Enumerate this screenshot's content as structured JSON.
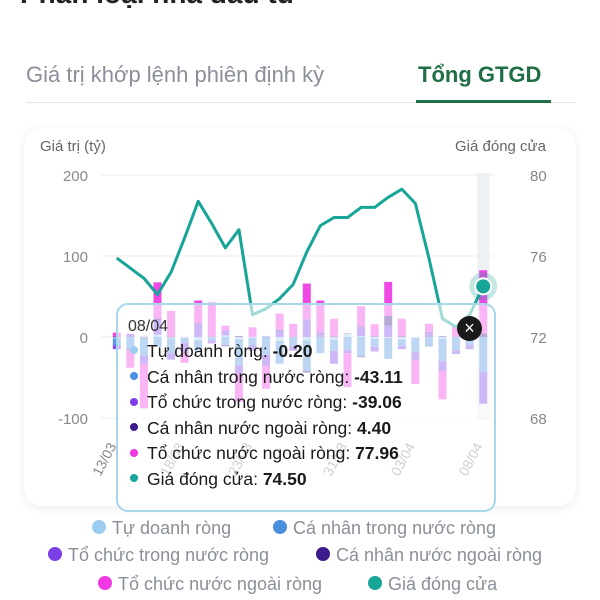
{
  "page": {
    "partial_title": "Phân loại nhà đầu tư"
  },
  "tabs": [
    {
      "label": "Giá trị khớp lệnh phiên định kỳ",
      "active": false
    },
    {
      "label": "Tổng GTGD",
      "active": true
    }
  ],
  "colors": {
    "tu_doanh": "#9ccdf0",
    "ca_nhan_trong_nuoc": "#4a8fe0",
    "to_chuc_trong_nuoc": "#7d3fe8",
    "ca_nhan_nuoc_ngoai": "#3d1a8c",
    "to_chuc_nuoc_ngoai": "#ef38e2",
    "gia_dong_cua": "#17a597",
    "accent": "#1f6e44"
  },
  "chart_data": {
    "type": "bar",
    "subtype": "stacked bar with line overlay",
    "left_axis_title": "Giá trị (tỷ)",
    "right_axis_title": "Giá đóng cửa",
    "y_ticks": [
      "200",
      "100",
      "0",
      "-100"
    ],
    "ylim": [
      -100,
      200
    ],
    "y2_ticks": [
      "80",
      "76",
      "72",
      "68"
    ],
    "y2lim": [
      68,
      80
    ],
    "x_tick_labels": [
      "13/03",
      "18/03",
      "23/03",
      "31/03",
      "03/04",
      "08/04"
    ],
    "x_tick_positions": [
      0,
      5,
      10,
      17,
      22,
      27
    ],
    "bar_count": 28,
    "series": [
      {
        "key": "tu_doanh",
        "name": "Tự doanh ròng",
        "values": [
          -2,
          0,
          -1,
          3,
          -2,
          -1,
          -4,
          -1,
          2,
          -3,
          -1,
          0,
          -5,
          -1,
          -4,
          0,
          -3,
          4,
          1,
          -2,
          -1,
          -3,
          -1,
          0,
          -2,
          -1,
          0,
          -0.2
        ]
      },
      {
        "key": "ca_nhan_trong_nuoc",
        "name": "Cá nhân trong nước ròng",
        "values": [
          -8,
          -15,
          -22,
          -12,
          -18,
          -6,
          -14,
          -3,
          -10,
          -32,
          -9,
          -22,
          -28,
          -10,
          -38,
          -20,
          -14,
          -16,
          -24,
          -10,
          -26,
          -8,
          -18,
          -12,
          -28,
          -16,
          -10,
          -43.11
        ]
      },
      {
        "key": "to_chuc_trong_nuoc",
        "name": "Tổ chức trong nước ròng",
        "values": [
          -5,
          4,
          -10,
          18,
          -8,
          -12,
          16,
          -4,
          6,
          -10,
          -6,
          -14,
          8,
          -6,
          22,
          4,
          -16,
          -4,
          12,
          -6,
          14,
          -4,
          -8,
          6,
          -12,
          -4,
          -5,
          -39.06
        ]
      },
      {
        "key": "ca_nhan_nuoc_ngoai",
        "name": "Cá nhân nước ngoài ròng",
        "values": [
          0.5,
          -1,
          0.3,
          1.5,
          0.2,
          -0.8,
          1,
          0.4,
          -1.5,
          1.2,
          -0.3,
          0.6,
          1,
          0.3,
          -2,
          1,
          0.5,
          0.4,
          -1,
          0.8,
          12,
          0.6,
          -1,
          0.4,
          1,
          0.5,
          0.2,
          4.4
        ]
      },
      {
        "key": "to_chuc_nuoc_ngoai",
        "name": "Tổ chức nước ngoài ròng",
        "values": [
          5,
          -22,
          -55,
          45,
          32,
          -12,
          28,
          42,
          6,
          -35,
          12,
          -28,
          20,
          16,
          44,
          40,
          22,
          -42,
          25,
          15,
          42,
          22,
          -30,
          10,
          -35,
          14,
          6,
          77.96
        ]
      }
    ],
    "line": {
      "key": "gia_dong_cua",
      "name": "Giá đóng cửa",
      "values": [
        75.9,
        75.4,
        74.9,
        74.1,
        75.2,
        76.9,
        78.7,
        77.6,
        76.4,
        77.3,
        73.1,
        73.4,
        73.9,
        74.6,
        76.2,
        77.5,
        77.9,
        77.9,
        78.4,
        78.4,
        78.9,
        79.3,
        78.6,
        75.9,
        72.9,
        72.5,
        73.1,
        74.5
      ]
    },
    "tooltip": {
      "date": "08/04",
      "close_symbol": "×",
      "rows": [
        {
          "label": "Tự doanh ròng:",
          "value": "-0.20",
          "color_key": "tu_doanh"
        },
        {
          "label": "Cá nhân trong nước ròng:",
          "value": "-43.11",
          "color_key": "ca_nhan_trong_nuoc"
        },
        {
          "label": "Tổ chức trong nước ròng:",
          "value": "-39.06",
          "color_key": "to_chuc_trong_nuoc"
        },
        {
          "label": "Cá nhân nước ngoài ròng:",
          "value": "4.40",
          "color_key": "ca_nhan_nuoc_ngoai"
        },
        {
          "label": "Tổ chức nước ngoài ròng:",
          "value": "77.96",
          "color_key": "to_chuc_nuoc_ngoai"
        },
        {
          "label": "Giá đóng cửa:",
          "value": "74.50",
          "color_key": "gia_dong_cua"
        }
      ]
    },
    "legend": [
      {
        "label": "Tự doanh ròng",
        "color_key": "tu_doanh"
      },
      {
        "label": "Cá nhân trong nước ròng",
        "color_key": "ca_nhan_trong_nuoc"
      },
      {
        "label": "Tổ chức trong nước ròng",
        "color_key": "to_chuc_trong_nuoc"
      },
      {
        "label": "Cá nhân nước ngoài ròng",
        "color_key": "ca_nhan_nuoc_ngoai"
      },
      {
        "label": "Tổ chức nước ngoài ròng",
        "color_key": "to_chuc_nuoc_ngoai"
      },
      {
        "label": "Giá đóng cửa",
        "color_key": "gia_dong_cua"
      }
    ]
  }
}
